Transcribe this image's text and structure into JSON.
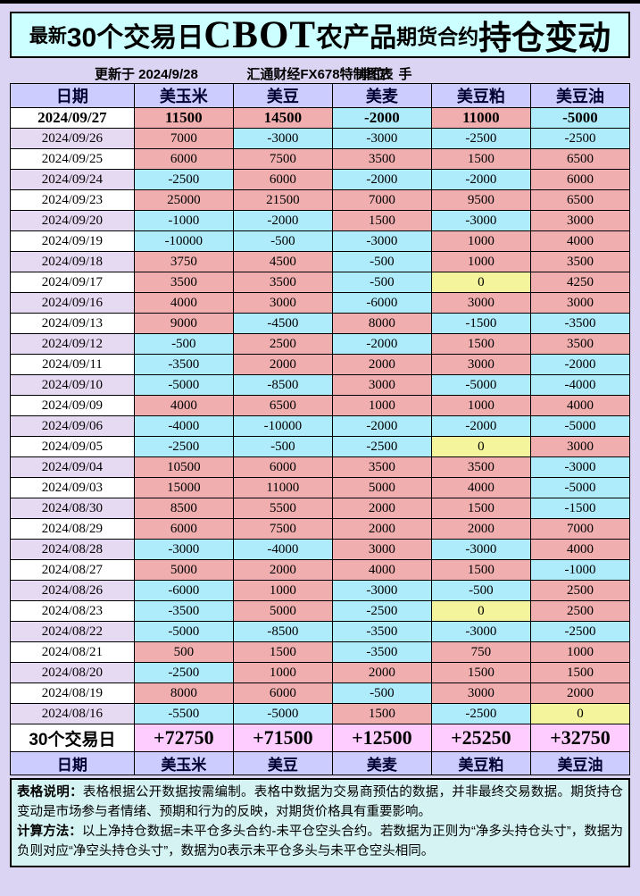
{
  "page": {
    "title_segments": [
      "最新",
      "30个交易日",
      "CBOT",
      "农产品",
      "期货合约",
      "持仓变动"
    ],
    "updated": "更新于 2024/9/28",
    "source": "汇通财经FX678特制图表",
    "unit": "单位：手"
  },
  "chart_data": {
    "type": "table",
    "title": "最新30个交易日CBOT农产品期货合约持仓变动",
    "unit": "手",
    "columns": [
      "日期",
      "美玉米",
      "美豆",
      "美麦",
      "美豆粕",
      "美豆油"
    ],
    "rows": [
      {
        "date": "2024/09/27",
        "values": [
          11500,
          14500,
          -2000,
          11000,
          -5000
        ]
      },
      {
        "date": "2024/09/26",
        "values": [
          7000,
          -3000,
          -3000,
          -2500,
          -2500
        ]
      },
      {
        "date": "2024/09/25",
        "values": [
          6000,
          7500,
          3500,
          1500,
          6500
        ]
      },
      {
        "date": "2024/09/24",
        "values": [
          -2500,
          6000,
          -2000,
          -2000,
          6000
        ]
      },
      {
        "date": "2024/09/23",
        "values": [
          25000,
          21500,
          7000,
          9500,
          6500
        ]
      },
      {
        "date": "2024/09/20",
        "values": [
          -1000,
          -2000,
          1500,
          -3000,
          3000
        ]
      },
      {
        "date": "2024/09/19",
        "values": [
          -10000,
          -500,
          -3000,
          1000,
          4000
        ]
      },
      {
        "date": "2024/09/18",
        "values": [
          3750,
          4500,
          -500,
          1000,
          3500
        ]
      },
      {
        "date": "2024/09/17",
        "values": [
          3500,
          3500,
          -500,
          0,
          4250
        ]
      },
      {
        "date": "2024/09/16",
        "values": [
          4000,
          3000,
          -6000,
          3000,
          3000
        ]
      },
      {
        "date": "2024/09/13",
        "values": [
          9000,
          -4500,
          8000,
          -1500,
          -3500
        ]
      },
      {
        "date": "2024/09/12",
        "values": [
          -500,
          2500,
          -2000,
          1500,
          3500
        ]
      },
      {
        "date": "2024/09/11",
        "values": [
          -3500,
          2000,
          2000,
          3000,
          -2000
        ]
      },
      {
        "date": "2024/09/10",
        "values": [
          -5000,
          -8500,
          3000,
          -5000,
          -4000
        ]
      },
      {
        "date": "2024/09/09",
        "values": [
          4000,
          6500,
          1000,
          1000,
          4000
        ]
      },
      {
        "date": "2024/09/06",
        "values": [
          -4000,
          -10000,
          -2000,
          -2000,
          -5000
        ]
      },
      {
        "date": "2024/09/05",
        "values": [
          -2500,
          -500,
          -2500,
          0,
          3000
        ]
      },
      {
        "date": "2024/09/04",
        "values": [
          10500,
          6000,
          3500,
          3500,
          -3000
        ]
      },
      {
        "date": "2024/09/03",
        "values": [
          15000,
          11000,
          5000,
          4000,
          -5000
        ]
      },
      {
        "date": "2024/08/30",
        "values": [
          8500,
          5500,
          2000,
          1500,
          -1500
        ]
      },
      {
        "date": "2024/08/29",
        "values": [
          6000,
          7500,
          2000,
          2000,
          7000
        ]
      },
      {
        "date": "2024/08/28",
        "values": [
          -3000,
          -4000,
          3000,
          -3000,
          4000
        ]
      },
      {
        "date": "2024/08/27",
        "values": [
          5000,
          2000,
          4000,
          1500,
          -1000
        ]
      },
      {
        "date": "2024/08/26",
        "values": [
          -6000,
          1000,
          -3000,
          -500,
          2500
        ]
      },
      {
        "date": "2024/08/23",
        "values": [
          -3500,
          5000,
          -2500,
          0,
          2500
        ]
      },
      {
        "date": "2024/08/22",
        "values": [
          -5000,
          -8500,
          -3500,
          -3000,
          -2500
        ]
      },
      {
        "date": "2024/08/21",
        "values": [
          500,
          1500,
          -3500,
          750,
          1000
        ]
      },
      {
        "date": "2024/08/20",
        "values": [
          -2500,
          1000,
          2000,
          1500,
          1500
        ]
      },
      {
        "date": "2024/08/19",
        "values": [
          8000,
          6000,
          -500,
          3000,
          2000
        ]
      },
      {
        "date": "2024/08/16",
        "values": [
          -5500,
          -5000,
          1500,
          -2500,
          0
        ]
      }
    ],
    "summary": {
      "label": "30个交易日",
      "values": [
        "+72750",
        "+71500",
        "+12500",
        "+25250",
        "+32750"
      ]
    },
    "footer_columns": [
      "日期",
      "美玉米",
      "美豆",
      "美麦",
      "美豆粕",
      "美豆油"
    ]
  },
  "notes": {
    "desc_label": "表格说明：",
    "desc_text": "表格根据公开数据按需编制。表格中数据为交易商预估的数据，并非最终交易数据。期货持仓变动是市场参与者情绪、预期和行为的反映，对期货价格具有重要影响。",
    "calc_label": "计算方法：",
    "calc_text": "以上净持仓数据=未平仓多头合约-未平仓空头合约。若数据为正则为“净多头持仓头寸”，数据为负则对应“净空头持仓头寸”，数据为0表示未平仓多头与未平仓空头相同。"
  },
  "colors": {
    "positive_cell": "#F1AEAE",
    "negative_cell": "#AEEBFB",
    "zero_cell": "#F3F49B",
    "summary_cell": "#FFCCFF",
    "header_cell": "#CCCCFF",
    "title_bg": "#CCFFFF",
    "page_bg": "#DBD4F2",
    "date_alt_cell": "#E6D9F2",
    "notes_bg": "#D6F3F3"
  }
}
